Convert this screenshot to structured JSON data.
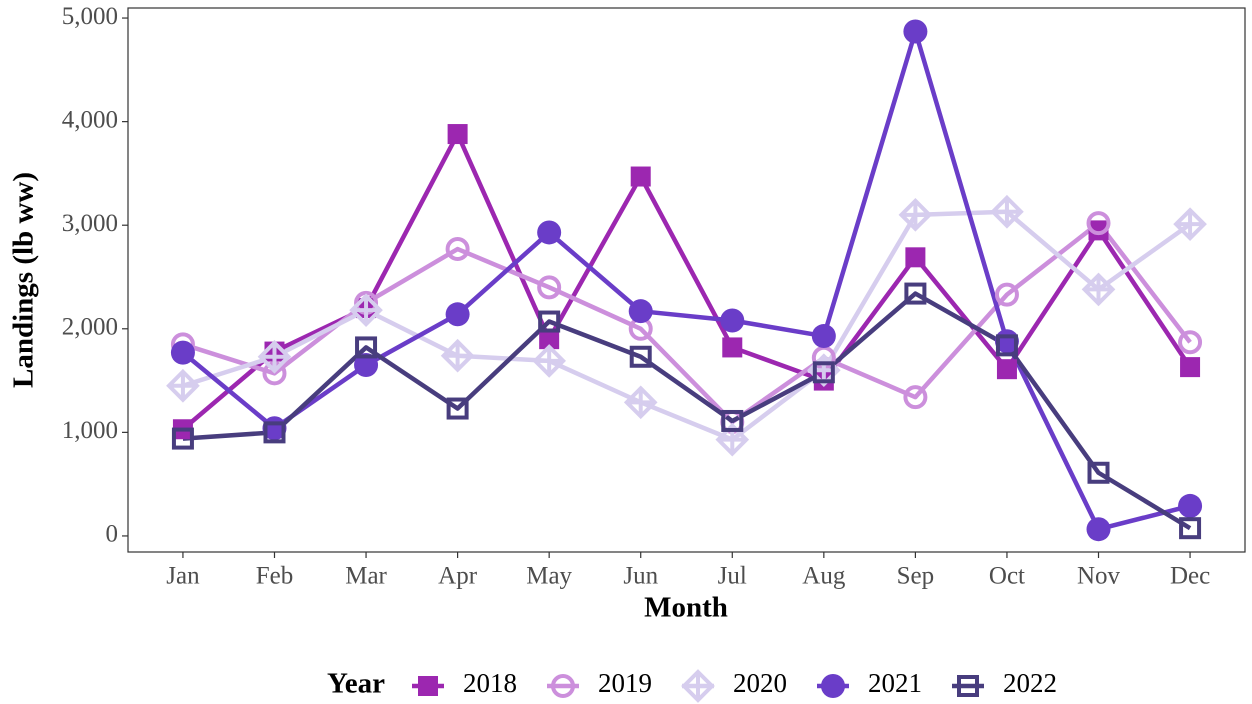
{
  "chart_data": {
    "type": "line",
    "xlabel": "Month",
    "ylabel": "Landings (lb ww)",
    "legend_title": "Year",
    "legend_position": "bottom",
    "categories": [
      "Jan",
      "Feb",
      "Mar",
      "Apr",
      "May",
      "Jun",
      "Jul",
      "Aug",
      "Sep",
      "Oct",
      "Nov",
      "Dec"
    ],
    "ylim": [
      -155,
      5097
    ],
    "yticks": [
      0,
      {
        "value": 1000,
        "label": "1,000"
      },
      {
        "value": 2000,
        "label": "2,000"
      },
      {
        "value": 3000,
        "label": "3,000"
      },
      {
        "value": 4000,
        "label": "4,000"
      },
      {
        "value": 5000,
        "label": "5,000"
      }
    ],
    "grid": false,
    "series": [
      {
        "name": "2018",
        "color": "#9c27b0",
        "marker": "filled-square",
        "values": [
          1030,
          1780,
          2200,
          3880,
          1900,
          3470,
          1820,
          1500,
          2690,
          1610,
          2950,
          1630
        ]
      },
      {
        "name": "2019",
        "color": "#cc8fdc",
        "marker": "open-circle",
        "values": [
          1850,
          1570,
          2250,
          2770,
          2400,
          2000,
          1100,
          1720,
          1340,
          2330,
          3020,
          1870
        ]
      },
      {
        "name": "2020",
        "color": "#d6cdee",
        "marker": "diamond-plus",
        "values": [
          1450,
          1730,
          2180,
          1740,
          1690,
          1290,
          930,
          1600,
          3100,
          3130,
          2380,
          3010
        ]
      },
      {
        "name": "2021",
        "color": "#6a3dc8",
        "marker": "filled-circle",
        "values": [
          1770,
          1040,
          1650,
          2140,
          2930,
          2170,
          2080,
          1930,
          4870,
          1880,
          65,
          290
        ]
      },
      {
        "name": "2022",
        "color": "#483d7e",
        "marker": "open-square",
        "values": [
          940,
          1000,
          1820,
          1230,
          2070,
          1730,
          1110,
          1580,
          2340,
          1840,
          610,
          75
        ]
      }
    ]
  }
}
